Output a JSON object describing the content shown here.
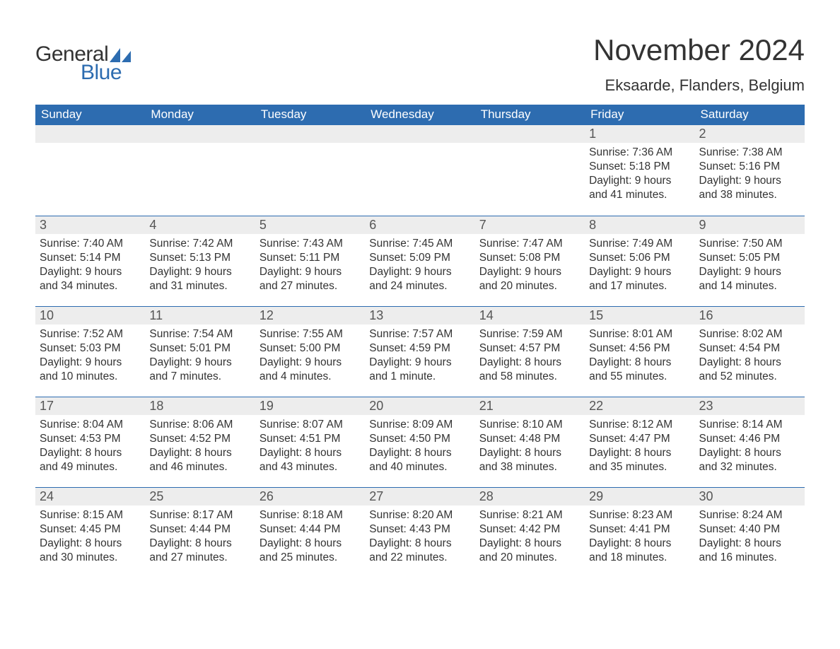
{
  "logo": {
    "word1": "General",
    "word2": "Blue",
    "sail_color": "#2d6cb0"
  },
  "title": "November 2024",
  "location": "Eksaarde, Flanders, Belgium",
  "colors": {
    "header_bg": "#2d6cb0",
    "header_text": "#ffffff",
    "daynum_bg": "#ededed",
    "daynum_border": "#2d6cb0",
    "body_text": "#333333",
    "page_bg": "#ffffff"
  },
  "day_labels": [
    "Sunday",
    "Monday",
    "Tuesday",
    "Wednesday",
    "Thursday",
    "Friday",
    "Saturday"
  ],
  "weeks": [
    [
      null,
      null,
      null,
      null,
      null,
      {
        "n": "1",
        "sunrise": "Sunrise: 7:36 AM",
        "sunset": "Sunset: 5:18 PM",
        "daylight": "Daylight: 9 hours and 41 minutes."
      },
      {
        "n": "2",
        "sunrise": "Sunrise: 7:38 AM",
        "sunset": "Sunset: 5:16 PM",
        "daylight": "Daylight: 9 hours and 38 minutes."
      }
    ],
    [
      {
        "n": "3",
        "sunrise": "Sunrise: 7:40 AM",
        "sunset": "Sunset: 5:14 PM",
        "daylight": "Daylight: 9 hours and 34 minutes."
      },
      {
        "n": "4",
        "sunrise": "Sunrise: 7:42 AM",
        "sunset": "Sunset: 5:13 PM",
        "daylight": "Daylight: 9 hours and 31 minutes."
      },
      {
        "n": "5",
        "sunrise": "Sunrise: 7:43 AM",
        "sunset": "Sunset: 5:11 PM",
        "daylight": "Daylight: 9 hours and 27 minutes."
      },
      {
        "n": "6",
        "sunrise": "Sunrise: 7:45 AM",
        "sunset": "Sunset: 5:09 PM",
        "daylight": "Daylight: 9 hours and 24 minutes."
      },
      {
        "n": "7",
        "sunrise": "Sunrise: 7:47 AM",
        "sunset": "Sunset: 5:08 PM",
        "daylight": "Daylight: 9 hours and 20 minutes."
      },
      {
        "n": "8",
        "sunrise": "Sunrise: 7:49 AM",
        "sunset": "Sunset: 5:06 PM",
        "daylight": "Daylight: 9 hours and 17 minutes."
      },
      {
        "n": "9",
        "sunrise": "Sunrise: 7:50 AM",
        "sunset": "Sunset: 5:05 PM",
        "daylight": "Daylight: 9 hours and 14 minutes."
      }
    ],
    [
      {
        "n": "10",
        "sunrise": "Sunrise: 7:52 AM",
        "sunset": "Sunset: 5:03 PM",
        "daylight": "Daylight: 9 hours and 10 minutes."
      },
      {
        "n": "11",
        "sunrise": "Sunrise: 7:54 AM",
        "sunset": "Sunset: 5:01 PM",
        "daylight": "Daylight: 9 hours and 7 minutes."
      },
      {
        "n": "12",
        "sunrise": "Sunrise: 7:55 AM",
        "sunset": "Sunset: 5:00 PM",
        "daylight": "Daylight: 9 hours and 4 minutes."
      },
      {
        "n": "13",
        "sunrise": "Sunrise: 7:57 AM",
        "sunset": "Sunset: 4:59 PM",
        "daylight": "Daylight: 9 hours and 1 minute."
      },
      {
        "n": "14",
        "sunrise": "Sunrise: 7:59 AM",
        "sunset": "Sunset: 4:57 PM",
        "daylight": "Daylight: 8 hours and 58 minutes."
      },
      {
        "n": "15",
        "sunrise": "Sunrise: 8:01 AM",
        "sunset": "Sunset: 4:56 PM",
        "daylight": "Daylight: 8 hours and 55 minutes."
      },
      {
        "n": "16",
        "sunrise": "Sunrise: 8:02 AM",
        "sunset": "Sunset: 4:54 PM",
        "daylight": "Daylight: 8 hours and 52 minutes."
      }
    ],
    [
      {
        "n": "17",
        "sunrise": "Sunrise: 8:04 AM",
        "sunset": "Sunset: 4:53 PM",
        "daylight": "Daylight: 8 hours and 49 minutes."
      },
      {
        "n": "18",
        "sunrise": "Sunrise: 8:06 AM",
        "sunset": "Sunset: 4:52 PM",
        "daylight": "Daylight: 8 hours and 46 minutes."
      },
      {
        "n": "19",
        "sunrise": "Sunrise: 8:07 AM",
        "sunset": "Sunset: 4:51 PM",
        "daylight": "Daylight: 8 hours and 43 minutes."
      },
      {
        "n": "20",
        "sunrise": "Sunrise: 8:09 AM",
        "sunset": "Sunset: 4:50 PM",
        "daylight": "Daylight: 8 hours and 40 minutes."
      },
      {
        "n": "21",
        "sunrise": "Sunrise: 8:10 AM",
        "sunset": "Sunset: 4:48 PM",
        "daylight": "Daylight: 8 hours and 38 minutes."
      },
      {
        "n": "22",
        "sunrise": "Sunrise: 8:12 AM",
        "sunset": "Sunset: 4:47 PM",
        "daylight": "Daylight: 8 hours and 35 minutes."
      },
      {
        "n": "23",
        "sunrise": "Sunrise: 8:14 AM",
        "sunset": "Sunset: 4:46 PM",
        "daylight": "Daylight: 8 hours and 32 minutes."
      }
    ],
    [
      {
        "n": "24",
        "sunrise": "Sunrise: 8:15 AM",
        "sunset": "Sunset: 4:45 PM",
        "daylight": "Daylight: 8 hours and 30 minutes."
      },
      {
        "n": "25",
        "sunrise": "Sunrise: 8:17 AM",
        "sunset": "Sunset: 4:44 PM",
        "daylight": "Daylight: 8 hours and 27 minutes."
      },
      {
        "n": "26",
        "sunrise": "Sunrise: 8:18 AM",
        "sunset": "Sunset: 4:44 PM",
        "daylight": "Daylight: 8 hours and 25 minutes."
      },
      {
        "n": "27",
        "sunrise": "Sunrise: 8:20 AM",
        "sunset": "Sunset: 4:43 PM",
        "daylight": "Daylight: 8 hours and 22 minutes."
      },
      {
        "n": "28",
        "sunrise": "Sunrise: 8:21 AM",
        "sunset": "Sunset: 4:42 PM",
        "daylight": "Daylight: 8 hours and 20 minutes."
      },
      {
        "n": "29",
        "sunrise": "Sunrise: 8:23 AM",
        "sunset": "Sunset: 4:41 PM",
        "daylight": "Daylight: 8 hours and 18 minutes."
      },
      {
        "n": "30",
        "sunrise": "Sunrise: 8:24 AM",
        "sunset": "Sunset: 4:40 PM",
        "daylight": "Daylight: 8 hours and 16 minutes."
      }
    ]
  ]
}
